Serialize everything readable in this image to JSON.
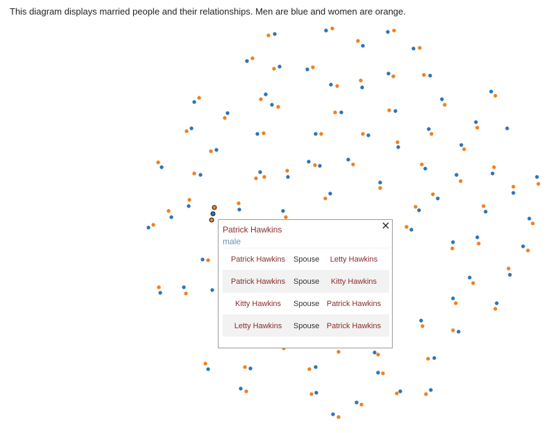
{
  "description": "This diagram displays married people and their relationships. Men are blue and women are orange.",
  "colors": {
    "male": "#2e74b5",
    "female": "#f0801f"
  },
  "popup": {
    "name": "Patrick Hawkins",
    "gender": "male",
    "close_icon": "close-icon",
    "relationships": [
      {
        "from": "Patrick Hawkins",
        "type": "Spouse",
        "to": "Letty Hawkins"
      },
      {
        "from": "Patrick Hawkins",
        "type": "Spouse",
        "to": "Kitty Hawkins"
      },
      {
        "from": "Kitty Hawkins",
        "type": "Spouse",
        "to": "Patrick Hawkins"
      },
      {
        "from": "Letty Hawkins",
        "type": "Spouse",
        "to": "Patrick Hawkins"
      }
    ]
  }
}
